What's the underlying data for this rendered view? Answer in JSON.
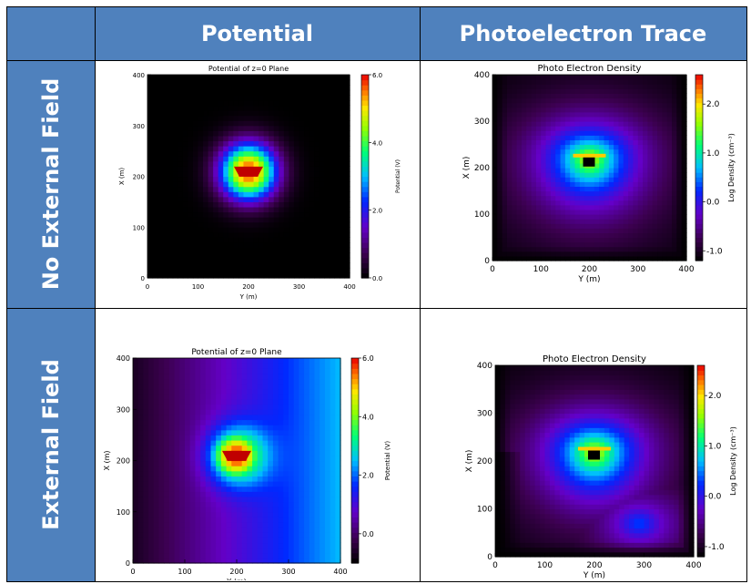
{
  "table": {
    "column_headers": [
      "Potential",
      "Photoelectron Trace"
    ],
    "row_headers": [
      "No External Field",
      "External Field"
    ]
  },
  "chart_data": [
    {
      "type": "heatmap",
      "panel": "potential-no-field",
      "title": "Potential of z=0 Plane",
      "xlabel": "Y (m)",
      "ylabel": "X (m)",
      "colorbar_label": "Potential (V)",
      "xticks": [
        "0",
        "100",
        "200",
        "300",
        "400"
      ],
      "yticks": [
        "0",
        "100",
        "200",
        "300",
        "400"
      ],
      "colorbar_ticks": [
        "0.0",
        "2.0",
        "4.0",
        "6.0"
      ],
      "xlim": [
        0,
        400
      ],
      "ylim": [
        0,
        400
      ],
      "clim": [
        0,
        6
      ],
      "background_field": "none",
      "hotspot": {
        "x": 200,
        "y": 210
      }
    },
    {
      "type": "heatmap",
      "panel": "trace-no-field",
      "title": "Photo Electron Density",
      "xlabel": "Y (m)",
      "ylabel": "X (m)",
      "colorbar_label": "Log Density (cm⁻³)",
      "xticks": [
        "0",
        "100",
        "200",
        "300",
        "400"
      ],
      "yticks": [
        "0",
        "100",
        "200",
        "300",
        "400"
      ],
      "colorbar_ticks": [
        "-1.0",
        "0.0",
        "1.0",
        "2.0"
      ],
      "xlim": [
        0,
        400
      ],
      "ylim": [
        0,
        400
      ],
      "clim": [
        -1.2,
        2.6
      ],
      "background_field": "none",
      "hotspot": {
        "x": 200,
        "y": 220
      }
    },
    {
      "type": "heatmap",
      "panel": "potential-external-field",
      "title": "Potential of z=0 Plane",
      "xlabel": "Y (m)",
      "ylabel": "X (m)",
      "colorbar_label": "Potential (V)",
      "xticks": [
        "0",
        "100",
        "200",
        "300",
        "400"
      ],
      "yticks": [
        "0",
        "100",
        "200",
        "300",
        "400"
      ],
      "colorbar_ticks": [
        "0.0",
        "2.0",
        "4.0",
        "6.0"
      ],
      "xlim": [
        0,
        400
      ],
      "ylim": [
        0,
        400
      ],
      "clim": [
        -1,
        6
      ],
      "background_field": "gradient-along-y",
      "hotspot": {
        "x": 200,
        "y": 210
      }
    },
    {
      "type": "heatmap",
      "panel": "trace-external-field",
      "title": "Photo Electron Density",
      "xlabel": "Y (m)",
      "ylabel": "X (m)",
      "colorbar_label": "Log Density (cm⁻³)",
      "xticks": [
        "0",
        "100",
        "200",
        "300",
        "400"
      ],
      "yticks": [
        "0",
        "100",
        "200",
        "300",
        "400"
      ],
      "colorbar_ticks": [
        "-1.0",
        "0.0",
        "1.0",
        "2.0"
      ],
      "xlim": [
        0,
        400
      ],
      "ylim": [
        0,
        400
      ],
      "clim": [
        -1.2,
        2.6
      ],
      "background_field": "plume-lower-right",
      "hotspot": {
        "x": 200,
        "y": 220
      }
    }
  ]
}
